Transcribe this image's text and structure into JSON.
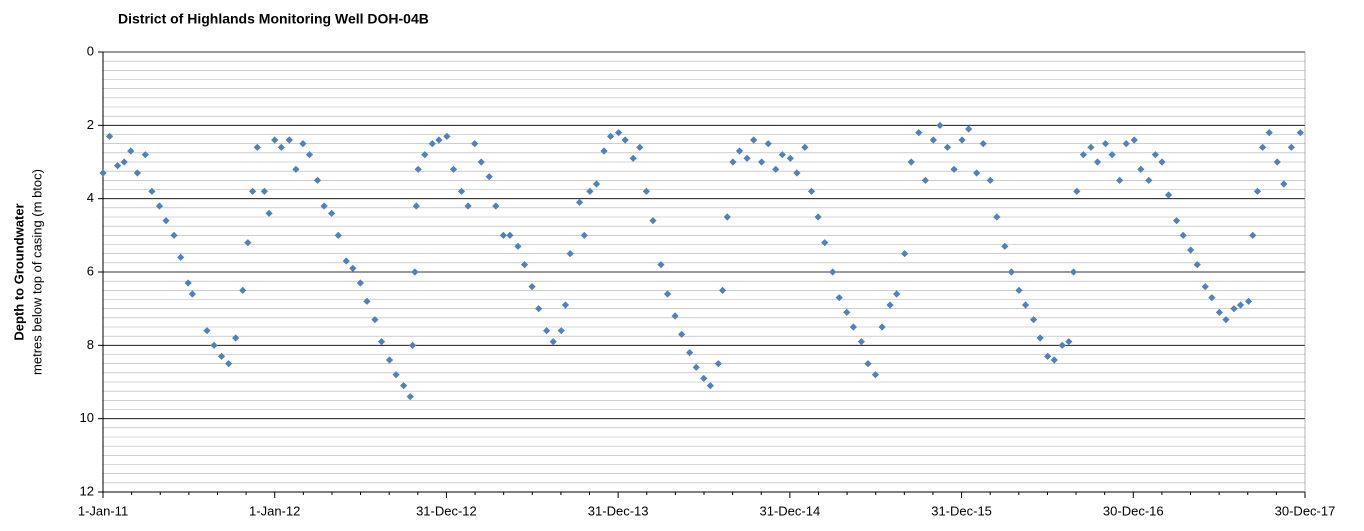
{
  "chart_data": {
    "type": "scatter",
    "title": "District of Highlands Monitoring Well DOH-04B",
    "y_label": "Depth to Groundwater",
    "y_sublabel": "metres below top of casing (m btoc)",
    "y_inverted": true,
    "ylim": [
      0,
      12
    ],
    "yticks": [
      0,
      2,
      4,
      6,
      8,
      10,
      12
    ],
    "minor_grid": 0.25,
    "grid": true,
    "xlim": [
      "2011-01-01",
      "2017-12-30"
    ],
    "xticks": [
      {
        "value": "2011-01-01",
        "label": "1-Jan-11"
      },
      {
        "value": "2012-01-01",
        "label": "1-Jan-12"
      },
      {
        "value": "2012-12-31",
        "label": "31-Dec-12"
      },
      {
        "value": "2013-12-31",
        "label": "31-Dec-13"
      },
      {
        "value": "2014-12-31",
        "label": "31-Dec-14"
      },
      {
        "value": "2015-12-31",
        "label": "31-Dec-15"
      },
      {
        "value": "2016-12-30",
        "label": "30-Dec-16"
      },
      {
        "value": "2017-12-30",
        "label": "30-Dec-17"
      }
    ],
    "series": [
      {
        "name": "DOH-04B",
        "color": "#4f81bd",
        "x": [
          "2011-01-01",
          "2011-01-15",
          "2011-02-01",
          "2011-02-15",
          "2011-03-01",
          "2011-03-15",
          "2011-04-01",
          "2011-04-15",
          "2011-05-01",
          "2011-05-15",
          "2011-06-01",
          "2011-06-15",
          "2011-07-01",
          "2011-07-10",
          "2011-08-10",
          "2011-08-25",
          "2011-09-10",
          "2011-09-25",
          "2011-10-10",
          "2011-10-25",
          "2011-11-05",
          "2011-11-15",
          "2011-11-25",
          "2011-12-10",
          "2011-12-20",
          "2012-01-01",
          "2012-01-15",
          "2012-02-01",
          "2012-02-15",
          "2012-03-01",
          "2012-03-15",
          "2012-04-01",
          "2012-04-15",
          "2012-05-01",
          "2012-05-15",
          "2012-06-01",
          "2012-06-15",
          "2012-07-01",
          "2012-07-15",
          "2012-08-01",
          "2012-08-15",
          "2012-09-01",
          "2012-09-15",
          "2012-10-01",
          "2012-10-15",
          "2012-10-20",
          "2012-10-25",
          "2012-10-28",
          "2012-11-01",
          "2012-11-15",
          "2012-12-01",
          "2012-12-15",
          "2013-01-01",
          "2013-01-15",
          "2013-02-01",
          "2013-02-15",
          "2013-03-01",
          "2013-03-15",
          "2013-04-01",
          "2013-04-15",
          "2013-05-01",
          "2013-05-15",
          "2013-06-01",
          "2013-06-15",
          "2013-07-01",
          "2013-07-15",
          "2013-08-01",
          "2013-08-15",
          "2013-09-01",
          "2013-09-10",
          "2013-09-20",
          "2013-10-10",
          "2013-10-20",
          "2013-11-01",
          "2013-11-15",
          "2013-12-01",
          "2013-12-15",
          "2014-01-01",
          "2014-01-15",
          "2014-02-01",
          "2014-02-15",
          "2014-03-01",
          "2014-03-15",
          "2014-04-01",
          "2014-04-15",
          "2014-05-01",
          "2014-05-15",
          "2014-06-01",
          "2014-06-15",
          "2014-07-01",
          "2014-07-15",
          "2014-08-01",
          "2014-08-10",
          "2014-08-20",
          "2014-09-01",
          "2014-09-15",
          "2014-10-01",
          "2014-10-15",
          "2014-11-01",
          "2014-11-15",
          "2014-12-01",
          "2014-12-15",
          "2015-01-01",
          "2015-01-15",
          "2015-02-01",
          "2015-02-15",
          "2015-03-01",
          "2015-03-15",
          "2015-04-01",
          "2015-04-15",
          "2015-05-01",
          "2015-05-15",
          "2015-06-01",
          "2015-06-15",
          "2015-07-01",
          "2015-07-15",
          "2015-08-01",
          "2015-08-15",
          "2015-09-01",
          "2015-09-15",
          "2015-10-01",
          "2015-10-15",
          "2015-11-01",
          "2015-11-15",
          "2015-12-01",
          "2015-12-15",
          "2016-01-01",
          "2016-01-15",
          "2016-02-01",
          "2016-02-15",
          "2016-03-01",
          "2016-03-15",
          "2016-04-01",
          "2016-04-15",
          "2016-05-01",
          "2016-05-15",
          "2016-06-01",
          "2016-06-15",
          "2016-07-01",
          "2016-07-15",
          "2016-08-01",
          "2016-08-15",
          "2016-08-25",
          "2016-09-01",
          "2016-09-15",
          "2016-10-01",
          "2016-10-15",
          "2016-11-01",
          "2016-11-15",
          "2016-12-01",
          "2016-12-15",
          "2017-01-01",
          "2017-01-15",
          "2017-02-01",
          "2017-02-15",
          "2017-03-01",
          "2017-03-15",
          "2017-04-01",
          "2017-04-15",
          "2017-05-01",
          "2017-05-15",
          "2017-06-01",
          "2017-06-15",
          "2017-07-01",
          "2017-07-15",
          "2017-08-01",
          "2017-08-15",
          "2017-09-01",
          "2017-09-10",
          "2017-09-20",
          "2017-10-01",
          "2017-10-15",
          "2017-11-01",
          "2017-11-15",
          "2017-12-01",
          "2017-12-20"
        ],
        "values": [
          3.3,
          2.3,
          3.1,
          3.0,
          2.7,
          3.3,
          2.8,
          3.8,
          4.2,
          4.6,
          5.0,
          5.6,
          6.3,
          6.6,
          7.6,
          8.0,
          8.3,
          8.5,
          7.8,
          6.5,
          5.2,
          3.8,
          2.6,
          3.8,
          4.4,
          2.4,
          2.6,
          2.4,
          3.2,
          2.5,
          2.8,
          3.5,
          4.2,
          4.4,
          5.0,
          5.7,
          5.9,
          6.3,
          6.8,
          7.3,
          7.9,
          8.4,
          8.8,
          9.1,
          9.4,
          8.0,
          6.0,
          4.2,
          3.2,
          2.8,
          2.5,
          2.4,
          2.3,
          3.2,
          3.8,
          4.2,
          2.5,
          3.0,
          3.4,
          4.2,
          5.0,
          5.0,
          5.3,
          5.8,
          6.4,
          7.0,
          7.6,
          7.9,
          7.6,
          6.9,
          5.5,
          4.1,
          5.0,
          3.8,
          3.6,
          2.7,
          2.3,
          2.2,
          2.4,
          2.9,
          2.6,
          3.8,
          4.6,
          5.8,
          6.6,
          7.2,
          7.7,
          8.2,
          8.6,
          8.9,
          9.1,
          8.5,
          6.5,
          4.5,
          3.0,
          2.7,
          2.9,
          2.4,
          3.0,
          2.5,
          3.2,
          2.8,
          2.9,
          3.3,
          2.6,
          3.8,
          4.5,
          5.2,
          6.0,
          6.7,
          7.1,
          7.5,
          7.9,
          8.5,
          8.8,
          7.5,
          6.9,
          6.6,
          5.5,
          3.0,
          2.2,
          3.5,
          2.4,
          2.0,
          2.6,
          3.2,
          2.4,
          2.1,
          3.3,
          2.5,
          3.5,
          4.5,
          5.3,
          6.0,
          6.5,
          6.9,
          7.3,
          7.8,
          8.3,
          8.4,
          8.0,
          7.9,
          6.0,
          3.8,
          2.8,
          2.6,
          3.0,
          2.5,
          2.8,
          3.5,
          2.5,
          2.4,
          3.2,
          3.5,
          2.8,
          3.0,
          3.9,
          4.6,
          5.0,
          5.4,
          5.8,
          6.4,
          6.7,
          7.1,
          7.3,
          7.0,
          6.9,
          6.8,
          5.0,
          3.8,
          2.6,
          2.2,
          3.0,
          3.6,
          2.6,
          2.2
        ]
      }
    ]
  }
}
